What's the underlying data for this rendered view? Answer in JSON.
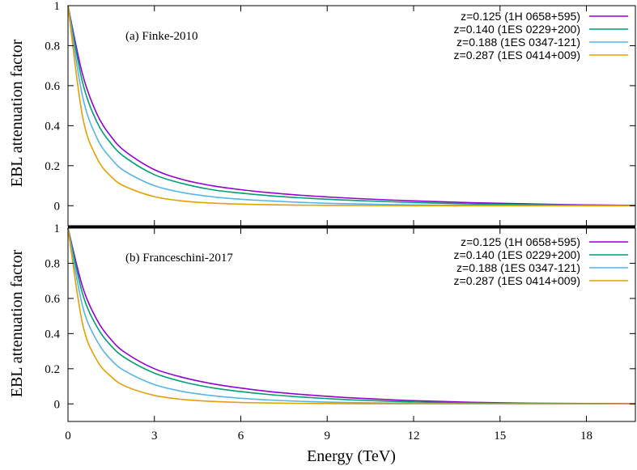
{
  "chart_data": [
    {
      "type": "line",
      "annotation": "(a) Finke-2010",
      "ylabel": "EBL attenuation factor",
      "xlabel": "",
      "xlim": [
        0,
        19.7
      ],
      "ylim": [
        -0.1,
        1.0
      ],
      "xticks": [
        "0",
        "3",
        "6",
        "9",
        "12",
        "15",
        "18"
      ],
      "yticks": [
        "0",
        "0.2",
        "0.4",
        "0.6",
        "0.8",
        "1"
      ],
      "grid": false,
      "legend_position": "top-right",
      "x": [
        0,
        0.5,
        1,
        1.5,
        2,
        3,
        4,
        5,
        6,
        7,
        8,
        9,
        10,
        12,
        14,
        16,
        18,
        19.7
      ],
      "series": [
        {
          "name": "z=0.125 (1H 0658+595)",
          "color": "#9400d3",
          "values": [
            1.0,
            0.66,
            0.46,
            0.345,
            0.27,
            0.18,
            0.13,
            0.1,
            0.08,
            0.065,
            0.053,
            0.044,
            0.036,
            0.024,
            0.015,
            0.009,
            0.004,
            0.002
          ]
        },
        {
          "name": "z=0.140 (1ES 0229+200)",
          "color": "#009e73",
          "values": [
            1.0,
            0.62,
            0.42,
            0.31,
            0.24,
            0.155,
            0.11,
            0.08,
            0.063,
            0.05,
            0.04,
            0.032,
            0.026,
            0.016,
            0.009,
            0.005,
            0.002,
            0.001
          ]
        },
        {
          "name": "z=0.188 (1ES 0347-121)",
          "color": "#56b4e9",
          "values": [
            1.0,
            0.55,
            0.34,
            0.235,
            0.17,
            0.1,
            0.065,
            0.045,
            0.032,
            0.024,
            0.017,
            0.012,
            0.009,
            0.004,
            0.002,
            0.001,
            0.0005,
            0.0002
          ]
        },
        {
          "name": "z=0.287 (1ES 0414+009)",
          "color": "#e69f00",
          "values": [
            1.0,
            0.45,
            0.24,
            0.145,
            0.095,
            0.045,
            0.023,
            0.013,
            0.008,
            0.005,
            0.003,
            0.002,
            0.0012,
            0.0005,
            0.0002,
            0.0001,
            0.0,
            0.0
          ]
        }
      ]
    },
    {
      "type": "line",
      "annotation": "(b) Franceschini-2017",
      "ylabel": "EBL attenuation factor",
      "xlabel": "Energy (TeV)",
      "xlim": [
        0,
        19.7
      ],
      "ylim": [
        -0.1,
        1.0
      ],
      "xticks": [
        "0",
        "3",
        "6",
        "9",
        "12",
        "15",
        "18"
      ],
      "yticks": [
        "0",
        "0.2",
        "0.4",
        "0.6",
        "0.8",
        "1"
      ],
      "grid": false,
      "legend_position": "top-right",
      "x": [
        0,
        0.5,
        1,
        1.5,
        2,
        3,
        4,
        5,
        6,
        7,
        8,
        9,
        10,
        12,
        14,
        16,
        18,
        19.7
      ],
      "series": [
        {
          "name": "z=0.125 (1H 0658+595)",
          "color": "#9400d3",
          "values": [
            1.0,
            0.67,
            0.48,
            0.365,
            0.29,
            0.2,
            0.15,
            0.115,
            0.09,
            0.07,
            0.055,
            0.043,
            0.033,
            0.018,
            0.009,
            0.004,
            0.002,
            0.001
          ]
        },
        {
          "name": "z=0.140 (1ES 0229+200)",
          "color": "#009e73",
          "values": [
            1.0,
            0.63,
            0.44,
            0.33,
            0.26,
            0.175,
            0.125,
            0.092,
            0.07,
            0.053,
            0.04,
            0.03,
            0.022,
            0.011,
            0.005,
            0.002,
            0.001,
            0.0005
          ]
        },
        {
          "name": "z=0.188 (1ES 0347-121)",
          "color": "#56b4e9",
          "values": [
            1.0,
            0.56,
            0.36,
            0.25,
            0.185,
            0.11,
            0.07,
            0.047,
            0.032,
            0.022,
            0.015,
            0.01,
            0.007,
            0.003,
            0.001,
            0.0005,
            0.0002,
            0.0001
          ]
        },
        {
          "name": "z=0.287 (1ES 0414+009)",
          "color": "#e69f00",
          "values": [
            1.0,
            0.46,
            0.25,
            0.155,
            0.1,
            0.048,
            0.025,
            0.014,
            0.008,
            0.005,
            0.003,
            0.002,
            0.001,
            0.0004,
            0.0001,
            0.0,
            0.0,
            0.0
          ]
        }
      ]
    }
  ]
}
